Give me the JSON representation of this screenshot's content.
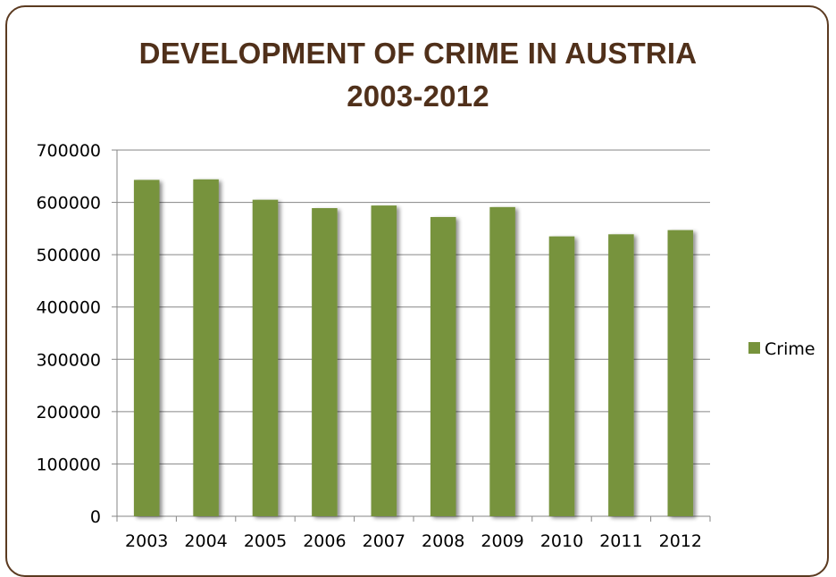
{
  "chart_data": {
    "type": "bar",
    "title_line1": "DEVELOPMENT OF CRIME IN AUSTRIA",
    "title_line2": "2003-2012",
    "categories": [
      "2003",
      "2004",
      "2005",
      "2006",
      "2007",
      "2008",
      "2009",
      "2010",
      "2011",
      "2012"
    ],
    "series": [
      {
        "name": "Crime",
        "values": [
          643000,
          644000,
          605000,
          589000,
          594000,
          572000,
          591000,
          535000,
          539000,
          547000
        ]
      }
    ],
    "ylim": [
      0,
      700000
    ],
    "yticks": [
      0,
      100000,
      200000,
      300000,
      400000,
      500000,
      600000,
      700000
    ],
    "grid": true,
    "legend_position": "right",
    "bar_color": "#77933c",
    "axis_color": "#868686"
  }
}
